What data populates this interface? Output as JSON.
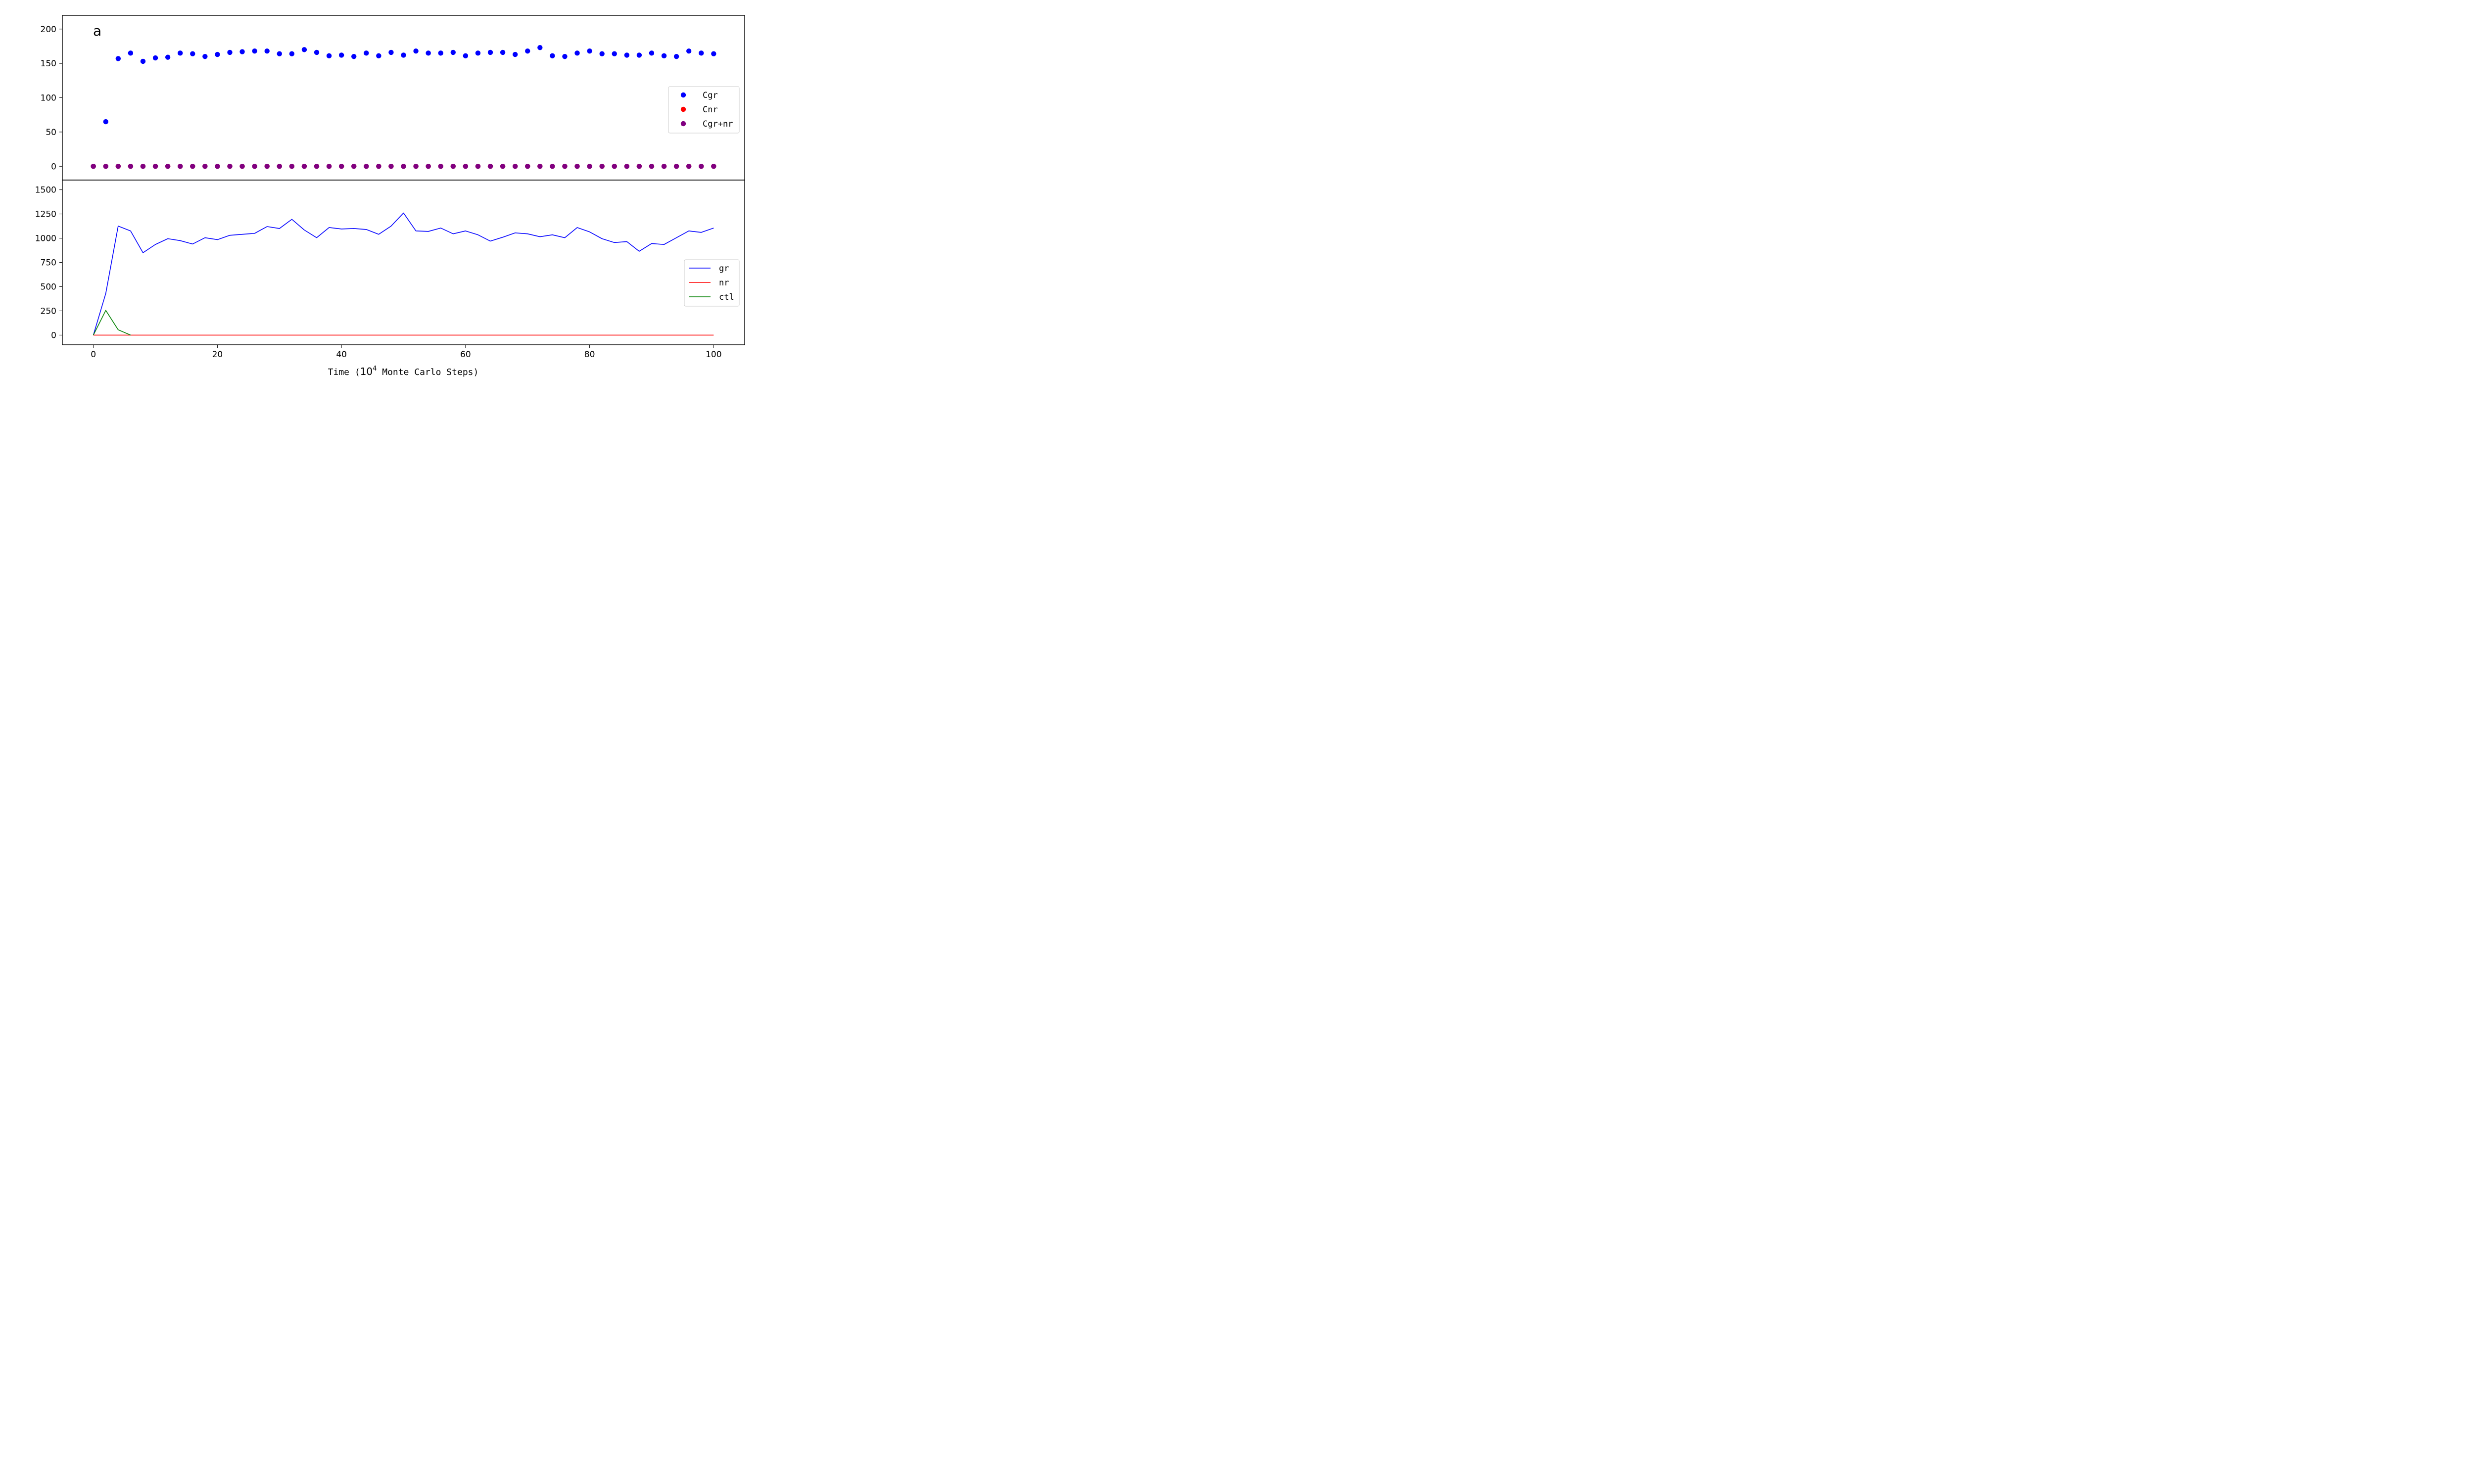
{
  "chart_data": [
    {
      "type": "scatter",
      "panel_label": "a",
      "xlim": [
        -5,
        105
      ],
      "ylim": [
        -20,
        220
      ],
      "yticks": [
        0,
        50,
        100,
        150,
        200
      ],
      "legend_position": "center-right",
      "series": [
        {
          "name": "Cgr",
          "color": "#0000ff",
          "x": [
            0,
            2,
            4,
            6,
            8,
            10,
            12,
            14,
            16,
            18,
            20,
            22,
            24,
            26,
            28,
            30,
            32,
            34,
            36,
            38,
            40,
            42,
            44,
            46,
            48,
            50,
            52,
            54,
            56,
            58,
            60,
            62,
            64,
            66,
            68,
            70,
            72,
            74,
            76,
            78,
            80,
            82,
            84,
            86,
            88,
            90,
            92,
            94,
            96,
            98,
            100
          ],
          "y": [
            0,
            65,
            157,
            165,
            153,
            158,
            159,
            165,
            164,
            160,
            163,
            166,
            167,
            168,
            168,
            164,
            164,
            170,
            166,
            161,
            162,
            160,
            165,
            161,
            166,
            162,
            168,
            165,
            165,
            166,
            161,
            165,
            166,
            166,
            163,
            168,
            173,
            161,
            160,
            165,
            168,
            164,
            164,
            162,
            162,
            165,
            161,
            160,
            168,
            165,
            164
          ]
        },
        {
          "name": "Cnr",
          "color": "#ff0000",
          "x": [
            0,
            2,
            4,
            6,
            8,
            10,
            12,
            14,
            16,
            18,
            20,
            22,
            24,
            26,
            28,
            30,
            32,
            34,
            36,
            38,
            40,
            42,
            44,
            46,
            48,
            50,
            52,
            54,
            56,
            58,
            60,
            62,
            64,
            66,
            68,
            70,
            72,
            74,
            76,
            78,
            80,
            82,
            84,
            86,
            88,
            90,
            92,
            94,
            96,
            98,
            100
          ],
          "y": [
            0,
            0,
            0,
            0,
            0,
            0,
            0,
            0,
            0,
            0,
            0,
            0,
            0,
            0,
            0,
            0,
            0,
            0,
            0,
            0,
            0,
            0,
            0,
            0,
            0,
            0,
            0,
            0,
            0,
            0,
            0,
            0,
            0,
            0,
            0,
            0,
            0,
            0,
            0,
            0,
            0,
            0,
            0,
            0,
            0,
            0,
            0,
            0,
            0,
            0,
            0
          ]
        },
        {
          "name": "Cgr+nr",
          "color": "#800080",
          "x": [
            0,
            2,
            4,
            6,
            8,
            10,
            12,
            14,
            16,
            18,
            20,
            22,
            24,
            26,
            28,
            30,
            32,
            34,
            36,
            38,
            40,
            42,
            44,
            46,
            48,
            50,
            52,
            54,
            56,
            58,
            60,
            62,
            64,
            66,
            68,
            70,
            72,
            74,
            76,
            78,
            80,
            82,
            84,
            86,
            88,
            90,
            92,
            94,
            96,
            98,
            100
          ],
          "y": [
            0,
            0,
            0,
            0,
            0,
            0,
            0,
            0,
            0,
            0,
            0,
            0,
            0,
            0,
            0,
            0,
            0,
            0,
            0,
            0,
            0,
            0,
            0,
            0,
            0,
            0,
            0,
            0,
            0,
            0,
            0,
            0,
            0,
            0,
            0,
            0,
            0,
            0,
            0,
            0,
            0,
            0,
            0,
            0,
            0,
            0,
            0,
            0,
            0,
            0,
            0
          ]
        }
      ]
    },
    {
      "type": "line",
      "xlim": [
        -5,
        105
      ],
      "ylim": [
        -100,
        1600
      ],
      "yticks": [
        0,
        250,
        500,
        750,
        1000,
        1250,
        1500
      ],
      "xticks": [
        0,
        20,
        40,
        60,
        80,
        100
      ],
      "xlabel": {
        "prefix": "Time (",
        "base": "10",
        "exponent": "4",
        "suffix": " Monte Carlo Steps)"
      },
      "legend_position": "center-right",
      "series": [
        {
          "name": "gr",
          "color": "#0000ff",
          "x": [
            0,
            2,
            4,
            6,
            8,
            10,
            12,
            14,
            16,
            18,
            20,
            22,
            24,
            26,
            28,
            30,
            32,
            34,
            36,
            38,
            40,
            42,
            44,
            46,
            48,
            50,
            52,
            54,
            56,
            58,
            60,
            62,
            64,
            66,
            68,
            70,
            72,
            74,
            76,
            78,
            80,
            82,
            84,
            86,
            88,
            90,
            92,
            94,
            96,
            98,
            100
          ],
          "y": [
            0,
            430,
            1125,
            1075,
            850,
            935,
            995,
            975,
            940,
            1005,
            985,
            1030,
            1040,
            1050,
            1120,
            1100,
            1195,
            1085,
            1005,
            1110,
            1095,
            1100,
            1090,
            1040,
            1125,
            1260,
            1075,
            1070,
            1105,
            1045,
            1075,
            1035,
            970,
            1010,
            1055,
            1045,
            1015,
            1035,
            1005,
            1110,
            1065,
            995,
            955,
            965,
            865,
            945,
            935,
            1005,
            1075,
            1060,
            1105
          ]
        },
        {
          "name": "nr",
          "color": "#ff0000",
          "x": [
            0,
            2,
            4,
            6,
            8,
            10,
            12,
            14,
            16,
            18,
            20,
            22,
            24,
            26,
            28,
            30,
            32,
            34,
            36,
            38,
            40,
            42,
            44,
            46,
            48,
            50,
            52,
            54,
            56,
            58,
            60,
            62,
            64,
            66,
            68,
            70,
            72,
            74,
            76,
            78,
            80,
            82,
            84,
            86,
            88,
            90,
            92,
            94,
            96,
            98,
            100
          ],
          "y": [
            0,
            0,
            0,
            0,
            0,
            0,
            0,
            0,
            0,
            0,
            0,
            0,
            0,
            0,
            0,
            0,
            0,
            0,
            0,
            0,
            0,
            0,
            0,
            0,
            0,
            0,
            0,
            0,
            0,
            0,
            0,
            0,
            0,
            0,
            0,
            0,
            0,
            0,
            0,
            0,
            0,
            0,
            0,
            0,
            0,
            0,
            0,
            0,
            0,
            0,
            0
          ]
        },
        {
          "name": "ctl",
          "color": "#008000",
          "x": [
            0,
            2,
            4,
            6
          ],
          "y": [
            0,
            255,
            55,
            0
          ]
        }
      ]
    }
  ]
}
